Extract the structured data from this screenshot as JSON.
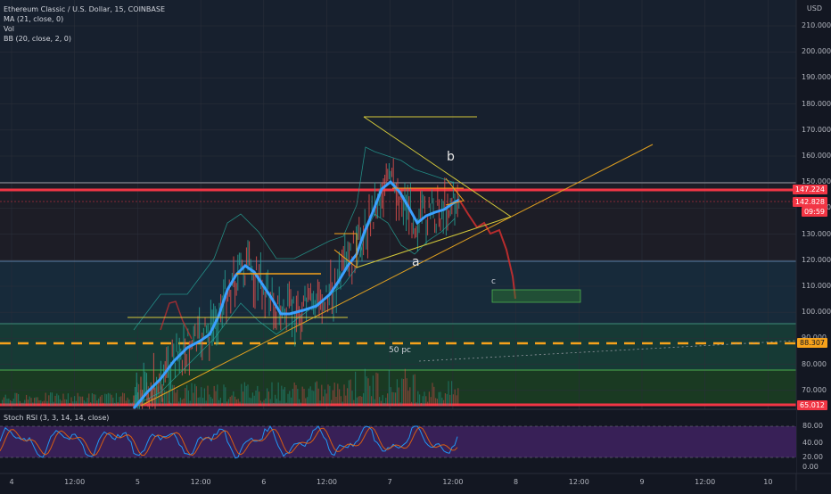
{
  "legend": {
    "symbol": "Ethereum Classic / U.S. Dollar, 15, COINBASE",
    "ma": "MA (21, close, 0)",
    "vol": "Vol",
    "bb": "BB (20, close, 2, 0)"
  },
  "currency": "USD",
  "price_axis": [
    "210.000",
    "200.000",
    "190.000",
    "180.000",
    "170.000",
    "160.000",
    "150.000",
    "140.000",
    "130.000",
    "120.000",
    "110.000",
    "100.000",
    "90.000",
    "80.000",
    "70.000"
  ],
  "price_tags": {
    "resistance": "147.224",
    "current": "142.828",
    "countdown": "09:59",
    "fib50": "88.307",
    "support": "65.012"
  },
  "stoch_axis": [
    "80.00",
    "40.00",
    "20.00",
    "0.00"
  ],
  "stoch_legend": "Stoch RSI (3, 3, 14, 14, close)",
  "time_axis": [
    "4",
    "12:00",
    "5",
    "12:00",
    "6",
    "12:00",
    "7",
    "12:00",
    "8",
    "12:00",
    "9",
    "12:00",
    "10"
  ],
  "annotations": {
    "wave_a": "a",
    "wave_b": "b",
    "wave_c": "c",
    "fib_label": "50 pc"
  },
  "colors": {
    "background": "#131722",
    "ma_line": "#3aa0ff",
    "resistance": "#f23645",
    "fib": "#f7a21b",
    "trend": "#e0a020",
    "target_box": "#2e7d32"
  }
}
